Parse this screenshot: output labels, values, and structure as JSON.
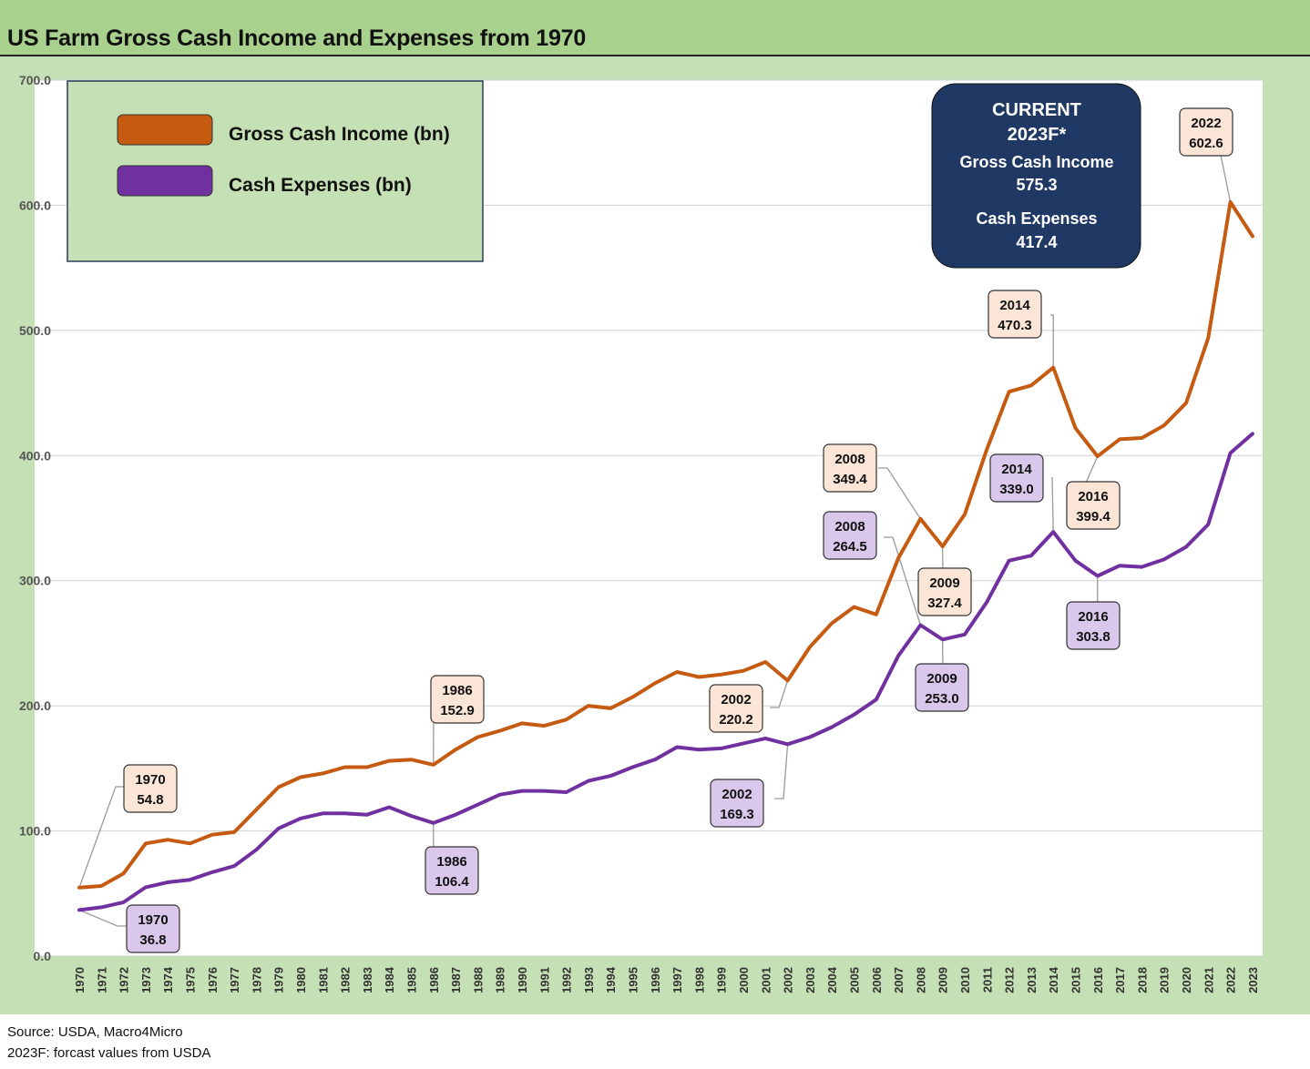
{
  "title": "US Farm Gross Cash Income and Expenses from 1970",
  "colors": {
    "header_bg": "#a9d18e",
    "frame_bg": "#c5e0b4",
    "income": "#c55a11",
    "expenses": "#7030a0",
    "income_label_bg": "#fbe5d6",
    "expense_label_bg": "#d9c8eb",
    "callout_bg": "#203864"
  },
  "legend": {
    "items": [
      {
        "label": "Gross Cash Income (bn)",
        "color": "#c55a11"
      },
      {
        "label": "Cash Expenses (bn)",
        "color": "#7030a0"
      }
    ]
  },
  "callout": {
    "line1": "CURRENT",
    "line2": "2023F*",
    "line3": "Gross Cash Income",
    "line4": "575.3",
    "line5": "Cash Expenses",
    "line6": "417.4"
  },
  "source": {
    "line1": "Source: USDA, Macro4Micro",
    "line2": "2023F: forcast values from USDA"
  },
  "chart_data": {
    "type": "line",
    "title": "US Farm Gross Cash Income and Expenses from 1970",
    "x": [
      "1970",
      "1971",
      "1972",
      "1973",
      "1974",
      "1975",
      "1976",
      "1977",
      "1978",
      "1979",
      "1980",
      "1981",
      "1982",
      "1983",
      "1984",
      "1985",
      "1986",
      "1987",
      "1988",
      "1989",
      "1990",
      "1991",
      "1992",
      "1993",
      "1994",
      "1995",
      "1996",
      "1997",
      "1998",
      "1999",
      "2000",
      "2001",
      "2002",
      "2003",
      "2004",
      "2005",
      "2006",
      "2007",
      "2008",
      "2009",
      "2010",
      "2011",
      "2012",
      "2013",
      "2014",
      "2015",
      "2016",
      "2017",
      "2018",
      "2019",
      "2020",
      "2021",
      "2022",
      "2023"
    ],
    "ylim": [
      0,
      700
    ],
    "yticks": [
      "0.0",
      "100.0",
      "200.0",
      "300.0",
      "400.0",
      "500.0",
      "600.0",
      "700.0"
    ],
    "grid": true,
    "legend_position": "top-left",
    "series": [
      {
        "name": "Gross Cash Income (bn)",
        "values": [
          54.8,
          56,
          66,
          90,
          93,
          90,
          97,
          99,
          117,
          135,
          143,
          146,
          151,
          151,
          156,
          157,
          152.9,
          165,
          175,
          180,
          186,
          184,
          189,
          200,
          198,
          207,
          218,
          227,
          223,
          225,
          228,
          235,
          220.2,
          247,
          266,
          279,
          273,
          318,
          349.4,
          327.4,
          353,
          405,
          451,
          456,
          470.3,
          422,
          399.4,
          413,
          414,
          424,
          442,
          494,
          602.6,
          575.3
        ]
      },
      {
        "name": "Cash Expenses (bn)",
        "values": [
          36.8,
          39,
          43,
          55,
          59,
          61,
          67,
          72,
          85,
          102,
          110,
          114,
          114,
          113,
          119,
          112,
          106.4,
          113,
          121,
          129,
          132,
          132,
          131,
          140,
          144,
          151,
          157,
          167,
          165,
          166,
          170,
          174,
          169.3,
          175,
          183,
          193,
          205,
          240,
          264.5,
          253,
          257,
          283,
          316,
          320,
          339,
          316,
          303.8,
          312,
          311,
          317,
          327,
          345,
          402,
          417.4
        ]
      }
    ],
    "annotations": [
      {
        "series": 0,
        "year": "1970",
        "line1": "1970",
        "line2": "54.8"
      },
      {
        "series": 0,
        "year": "1986",
        "line1": "1986",
        "line2": "152.9"
      },
      {
        "series": 0,
        "year": "2002",
        "line1": "2002",
        "line2": "220.2"
      },
      {
        "series": 0,
        "year": "2008",
        "line1": "2008",
        "line2": "349.4"
      },
      {
        "series": 0,
        "year": "2009",
        "line1": "2009",
        "line2": "327.4"
      },
      {
        "series": 0,
        "year": "2014",
        "line1": "2014",
        "line2": "470.3"
      },
      {
        "series": 0,
        "year": "2016",
        "line1": "2016",
        "line2": "399.4"
      },
      {
        "series": 0,
        "year": "2022",
        "line1": "2022",
        "line2": "602.6"
      },
      {
        "series": 1,
        "year": "1970",
        "line1": "1970",
        "line2": "36.8"
      },
      {
        "series": 1,
        "year": "1986",
        "line1": "1986",
        "line2": "106.4"
      },
      {
        "series": 1,
        "year": "2002",
        "line1": "2002",
        "line2": "169.3"
      },
      {
        "series": 1,
        "year": "2008",
        "line1": "2008",
        "line2": "264.5"
      },
      {
        "series": 1,
        "year": "2009",
        "line1": "2009",
        "line2": "253.0"
      },
      {
        "series": 1,
        "year": "2014",
        "line1": "2014",
        "line2": "339.0"
      },
      {
        "series": 1,
        "year": "2016",
        "line1": "2016",
        "line2": "303.8"
      }
    ]
  }
}
